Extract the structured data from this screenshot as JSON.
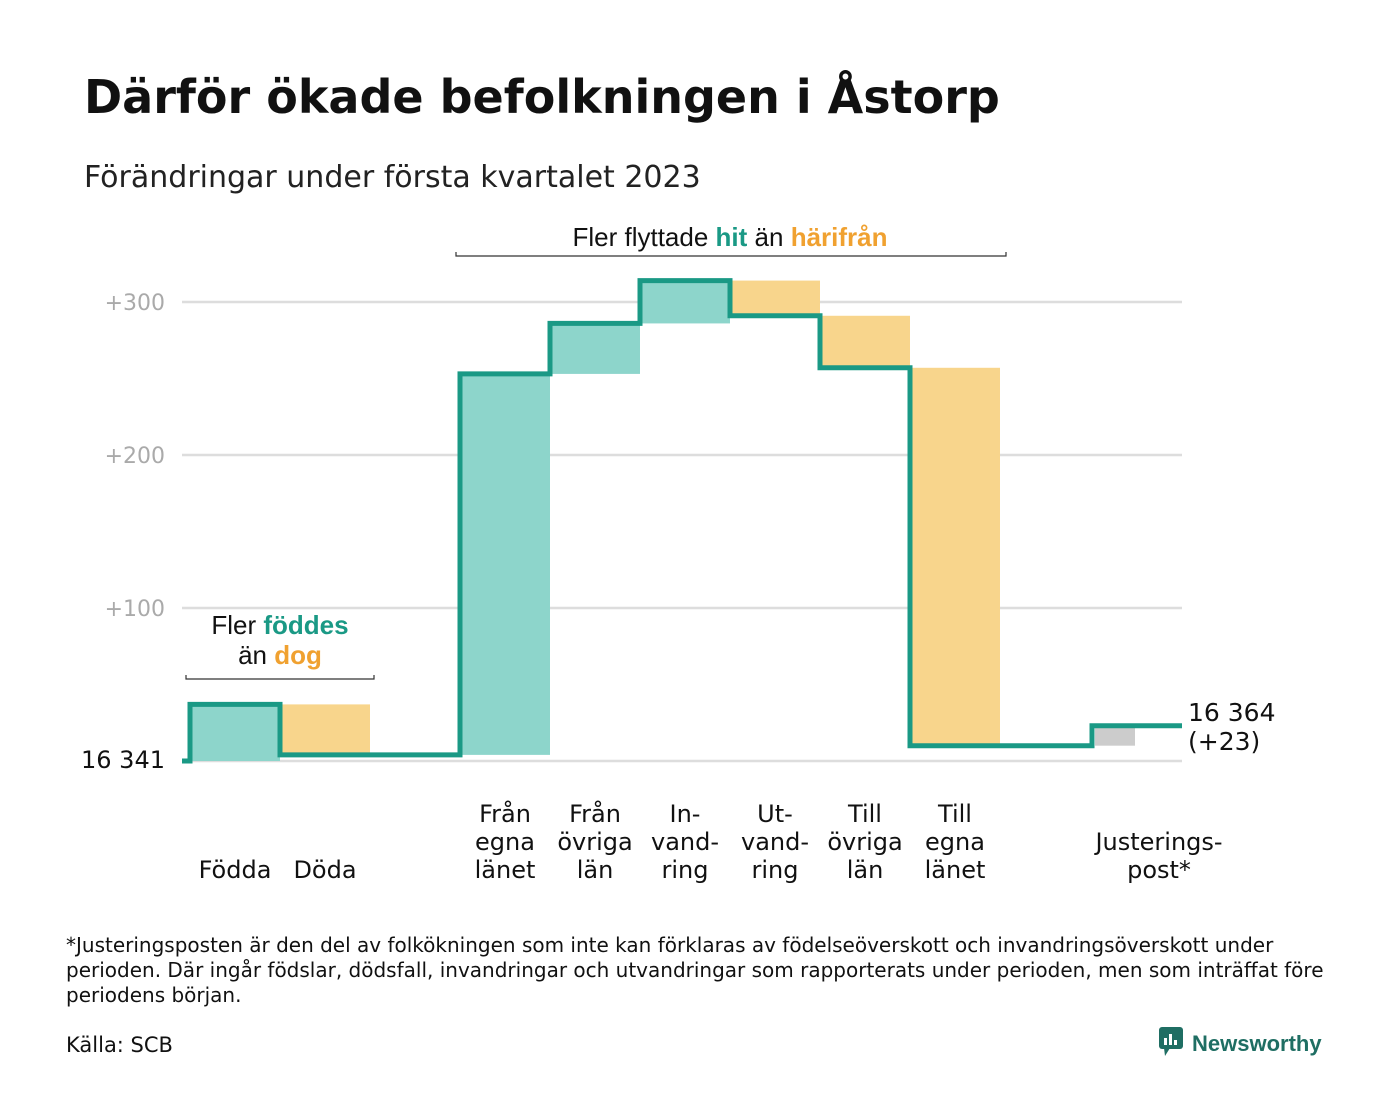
{
  "title": "Därför ökade befolkningen i Åstorp",
  "subtitle": "Förändringar under första kvartalet 2023",
  "colors": {
    "positive": "#8dd5cb",
    "negative": "#f8d58c",
    "adjust": "#cccccc",
    "line": "#1a9985",
    "teal_text": "#1a9985",
    "orange_text": "#f0a130",
    "grid": "#dddddd",
    "tick": "#aaaaaa"
  },
  "chart_data": {
    "type": "waterfall",
    "start": {
      "value": 16341,
      "label": "16 341"
    },
    "end": {
      "value": 16364,
      "label": "16 364",
      "change_label": "(+23)"
    },
    "y_ticks": [
      {
        "value": 100,
        "label": "+100"
      },
      {
        "value": 200,
        "label": "+200"
      },
      {
        "value": 300,
        "label": "+300"
      }
    ],
    "ylim": [
      0,
      300
    ],
    "steps": [
      {
        "category": "Födda",
        "lines": [
          "Födda"
        ],
        "change": 37,
        "kind": "positive"
      },
      {
        "category": "Döda",
        "lines": [
          "Döda"
        ],
        "change": -33,
        "kind": "negative"
      },
      {
        "category": "Från egna länet",
        "lines": [
          "Från",
          "egna",
          "länet"
        ],
        "change": 249,
        "kind": "positive"
      },
      {
        "category": "Från övriga län",
        "lines": [
          "Från",
          "övriga",
          "län"
        ],
        "change": 33,
        "kind": "positive"
      },
      {
        "category": "In-vandring",
        "lines": [
          "In-",
          "vand-",
          "ring"
        ],
        "change": 28,
        "kind": "positive"
      },
      {
        "category": "Ut-vandring",
        "lines": [
          "Ut-",
          "vand-",
          "ring"
        ],
        "change": -23,
        "kind": "negative"
      },
      {
        "category": "Till övriga län",
        "lines": [
          "Till",
          "övriga",
          "län"
        ],
        "change": -34,
        "kind": "negative"
      },
      {
        "category": "Till egna länet",
        "lines": [
          "Till",
          "egna",
          "länet"
        ],
        "change": -247,
        "kind": "negative"
      },
      {
        "category": "Justerings-post*",
        "lines": [
          "Justerings-",
          "post*"
        ],
        "change": 13,
        "kind": "adjust"
      }
    ],
    "annotations": [
      {
        "id": "births",
        "parts": [
          "Fler ",
          "föddes"
        ],
        "parts2": [
          "än ",
          "dog"
        ]
      },
      {
        "id": "migration",
        "parts": [
          "Fler flyttade ",
          "hit",
          " än ",
          "härifrån"
        ]
      }
    ]
  },
  "footnote": "*Justeringsposten är den del av folkökningen som inte kan förklaras av födelseöverskott och invandringsöverskott under perioden. Där ingår födslar, dödsfall, invandringar och utvandringar som rapporterats under perioden, men som inträffat före periodens början.",
  "source": "Källa: SCB",
  "brand": "Newsworthy"
}
